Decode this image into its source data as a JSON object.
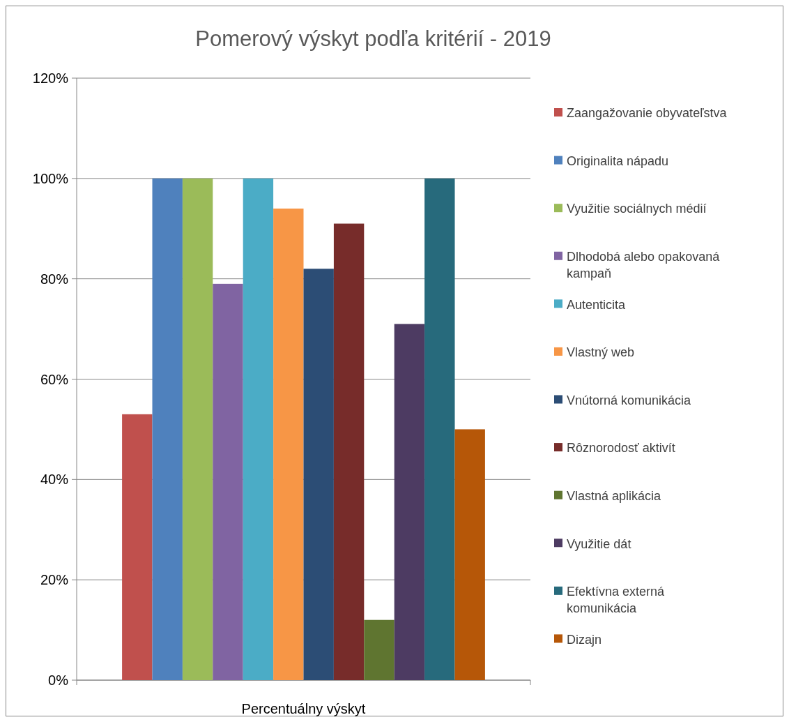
{
  "chart_data": {
    "type": "bar",
    "title": "Pomerový výskyt podľa kritérií - 2019",
    "categories": [
      "Percentuálny výskyt"
    ],
    "series": [
      {
        "name": "Zaangažovanie obyvateľstva",
        "color": "#c0504d",
        "values": [
          53
        ]
      },
      {
        "name": "Originalita nápadu",
        "color": "#4f81bd",
        "values": [
          100
        ]
      },
      {
        "name": "Využitie sociálnych médií",
        "color": "#9bbb59",
        "values": [
          100
        ]
      },
      {
        "name": "Dlhodobá alebo opakovaná kampaň",
        "color": "#8064a2",
        "values": [
          79
        ]
      },
      {
        "name": "Autenticita",
        "color": "#4bacc6",
        "values": [
          100
        ]
      },
      {
        "name": "Vlastný web",
        "color": "#f79646",
        "values": [
          94
        ]
      },
      {
        "name": "Vnútorná komunikácia",
        "color": "#2c4d75",
        "values": [
          82
        ]
      },
      {
        "name": "Rôznorodosť aktivít",
        "color": "#772c2a",
        "values": [
          91
        ]
      },
      {
        "name": "Vlastná aplikácia",
        "color": "#5f7530",
        "values": [
          12
        ]
      },
      {
        "name": "Využitie dát",
        "color": "#4d3b62",
        "values": [
          71
        ]
      },
      {
        "name": "Efektívna externá komunikácia",
        "color": "#276a7c",
        "values": [
          100
        ]
      },
      {
        "name": "Dizajn",
        "color": "#b65708",
        "values": [
          50
        ]
      }
    ],
    "ylim": [
      0,
      120
    ],
    "yticks": [
      {
        "value": 0,
        "label": "0%"
      },
      {
        "value": 20,
        "label": "20%"
      },
      {
        "value": 40,
        "label": "40%"
      },
      {
        "value": 60,
        "label": "60%"
      },
      {
        "value": 80,
        "label": "80%"
      },
      {
        "value": 100,
        "label": "100%"
      },
      {
        "value": 120,
        "label": "120%"
      }
    ],
    "grid": "y",
    "legend": "right"
  }
}
